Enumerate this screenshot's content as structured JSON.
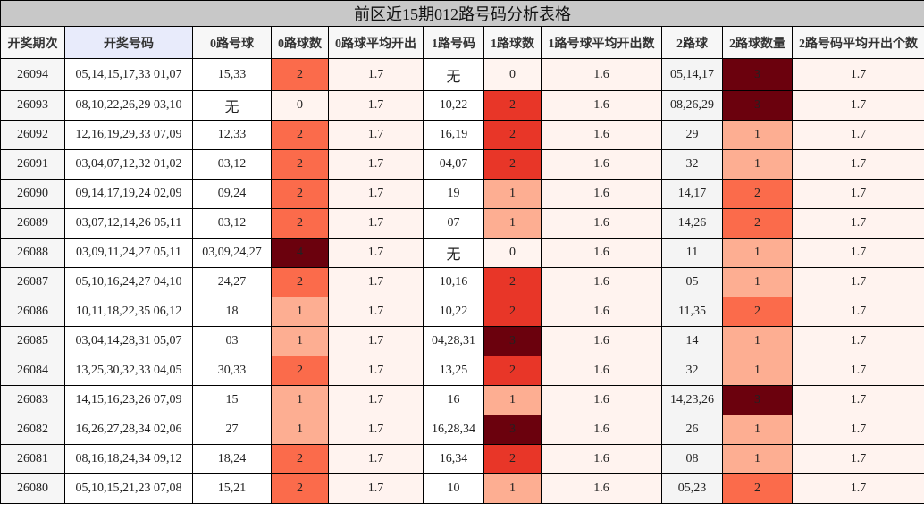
{
  "title": "前区近15期012路号码分析表格",
  "headers": [
    "开奖期次",
    "开奖号码",
    "0路号球",
    "0路球数",
    "0路球平均开出",
    "1路号码",
    "1路球数",
    "1路号球平均开出数",
    "2路球",
    "2路球数量",
    "2路号码平均开出个数"
  ],
  "rows": [
    {
      "period": "26094",
      "numbers": "05,14,15,17,33 01,07",
      "g0": "15,33",
      "c0": "2",
      "a0": "1.7",
      "g1": "无",
      "c1": "0",
      "a1": "1.6",
      "g2": "05,14,17",
      "c2": "3",
      "a2": "1.7"
    },
    {
      "period": "26093",
      "numbers": "08,10,22,26,29 03,10",
      "g0": "无",
      "c0": "0",
      "a0": "1.7",
      "g1": "10,22",
      "c1": "2",
      "a1": "1.6",
      "g2": "08,26,29",
      "c2": "3",
      "a2": "1.7"
    },
    {
      "period": "26092",
      "numbers": "12,16,19,29,33 07,09",
      "g0": "12,33",
      "c0": "2",
      "a0": "1.7",
      "g1": "16,19",
      "c1": "2",
      "a1": "1.6",
      "g2": "29",
      "c2": "1",
      "a2": "1.7"
    },
    {
      "period": "26091",
      "numbers": "03,04,07,12,32 01,02",
      "g0": "03,12",
      "c0": "2",
      "a0": "1.7",
      "g1": "04,07",
      "c1": "2",
      "a1": "1.6",
      "g2": "32",
      "c2": "1",
      "a2": "1.7"
    },
    {
      "period": "26090",
      "numbers": "09,14,17,19,24 02,09",
      "g0": "09,24",
      "c0": "2",
      "a0": "1.7",
      "g1": "19",
      "c1": "1",
      "a1": "1.6",
      "g2": "14,17",
      "c2": "2",
      "a2": "1.7"
    },
    {
      "period": "26089",
      "numbers": "03,07,12,14,26 05,11",
      "g0": "03,12",
      "c0": "2",
      "a0": "1.7",
      "g1": "07",
      "c1": "1",
      "a1": "1.6",
      "g2": "14,26",
      "c2": "2",
      "a2": "1.7"
    },
    {
      "period": "26088",
      "numbers": "03,09,11,24,27 05,11",
      "g0": "03,09,24,27",
      "c0": "4",
      "a0": "1.7",
      "g1": "无",
      "c1": "0",
      "a1": "1.6",
      "g2": "11",
      "c2": "1",
      "a2": "1.7"
    },
    {
      "period": "26087",
      "numbers": "05,10,16,24,27 04,10",
      "g0": "24,27",
      "c0": "2",
      "a0": "1.7",
      "g1": "10,16",
      "c1": "2",
      "a1": "1.6",
      "g2": "05",
      "c2": "1",
      "a2": "1.7"
    },
    {
      "period": "26086",
      "numbers": "10,11,18,22,35 06,12",
      "g0": "18",
      "c0": "1",
      "a0": "1.7",
      "g1": "10,22",
      "c1": "2",
      "a1": "1.6",
      "g2": "11,35",
      "c2": "2",
      "a2": "1.7"
    },
    {
      "period": "26085",
      "numbers": "03,04,14,28,31 05,07",
      "g0": "03",
      "c0": "1",
      "a0": "1.7",
      "g1": "04,28,31",
      "c1": "3",
      "a1": "1.6",
      "g2": "14",
      "c2": "1",
      "a2": "1.7"
    },
    {
      "period": "26084",
      "numbers": "13,25,30,32,33 04,05",
      "g0": "30,33",
      "c0": "2",
      "a0": "1.7",
      "g1": "13,25",
      "c1": "2",
      "a1": "1.6",
      "g2": "32",
      "c2": "1",
      "a2": "1.7"
    },
    {
      "period": "26083",
      "numbers": "14,15,16,23,26 07,09",
      "g0": "15",
      "c0": "1",
      "a0": "1.7",
      "g1": "16",
      "c1": "1",
      "a1": "1.6",
      "g2": "14,23,26",
      "c2": "3",
      "a2": "1.7"
    },
    {
      "period": "26082",
      "numbers": "16,26,27,28,34 02,06",
      "g0": "27",
      "c0": "1",
      "a0": "1.7",
      "g1": "16,28,34",
      "c1": "3",
      "a1": "1.6",
      "g2": "26",
      "c2": "1",
      "a2": "1.7"
    },
    {
      "period": "26081",
      "numbers": "08,16,18,24,34 09,12",
      "g0": "18,24",
      "c0": "2",
      "a0": "1.7",
      "g1": "16,34",
      "c1": "2",
      "a1": "1.6",
      "g2": "08",
      "c2": "1",
      "a2": "1.7"
    },
    {
      "period": "26080",
      "numbers": "05,10,15,21,23 07,08",
      "g0": "15,21",
      "c0": "2",
      "a0": "1.7",
      "g1": "10",
      "c1": "1",
      "a1": "1.6",
      "g2": "05,23",
      "c2": "2",
      "a2": "1.7"
    }
  ]
}
